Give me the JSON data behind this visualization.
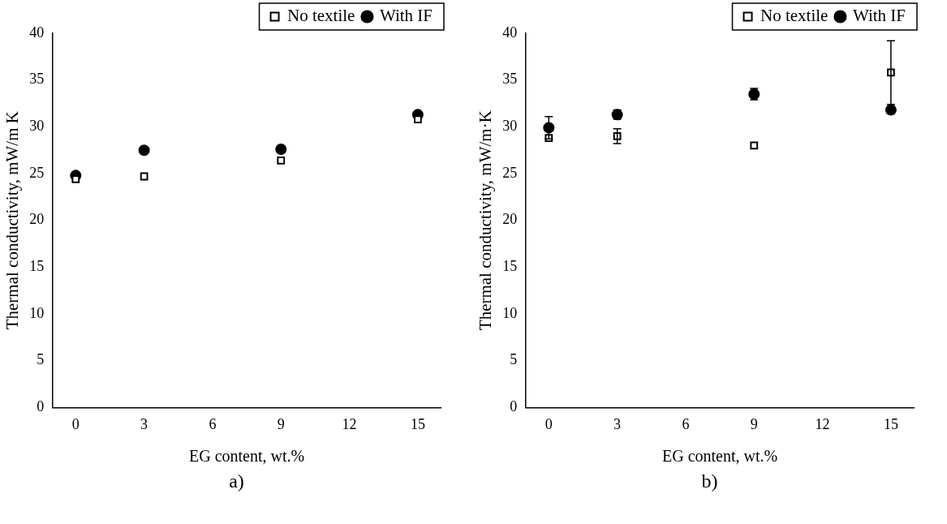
{
  "chart_data": [
    {
      "type": "scatter",
      "xlabel": "EG content, wt.%",
      "ylabel": "Thermal conductivity, mW/m K",
      "xlim": [
        -1,
        16
      ],
      "xticks": [
        0,
        3,
        6,
        9,
        12,
        15
      ],
      "ylim": [
        0,
        40
      ],
      "yticks": [
        0,
        5,
        10,
        15,
        20,
        25,
        30,
        35,
        40
      ],
      "grid": false,
      "legend": "top right",
      "annotations": [
        "a)"
      ],
      "series": [
        {
          "name": "No textile",
          "color": "#000000",
          "marker": "square",
          "x": [
            0,
            3,
            9,
            15
          ],
          "values": [
            24.4,
            24.7,
            26.4,
            30.8
          ]
        },
        {
          "name": "With IF",
          "color": "#000000",
          "marker": "circle",
          "x": [
            0,
            3,
            9,
            15
          ],
          "values": [
            24.8,
            27.5,
            27.6,
            31.3
          ]
        }
      ]
    },
    {
      "type": "scatter",
      "xlabel": "EG content, wt.%",
      "ylabel": "Thermal conductivity, mW/m·K",
      "xlim": [
        -1,
        16
      ],
      "xticks": [
        0,
        3,
        6,
        9,
        12,
        15
      ],
      "ylim": [
        0,
        40
      ],
      "yticks": [
        0,
        5,
        10,
        15,
        20,
        25,
        30,
        35,
        40
      ],
      "grid": false,
      "legend": "top right",
      "annotations": [
        "b)"
      ],
      "series": [
        {
          "name": "No textile",
          "color": "#000000",
          "marker": "square",
          "x": [
            0,
            3,
            9,
            15
          ],
          "values": [
            28.8,
            29.0,
            28.0,
            35.8
          ],
          "errors": [
            null,
            0.8,
            null,
            3.4
          ]
        },
        {
          "name": "With IF",
          "color": "#000000",
          "marker": "circle",
          "x": [
            0,
            3,
            9,
            15
          ],
          "values": [
            29.9,
            31.3,
            33.5,
            31.8
          ],
          "errors": [
            1.2,
            0.5,
            0.6,
            0.4
          ]
        }
      ]
    }
  ]
}
